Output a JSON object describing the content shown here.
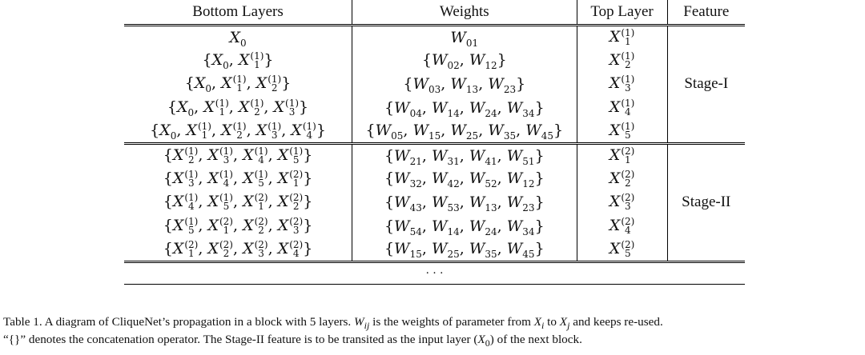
{
  "table": {
    "headers": [
      "Bottom Layers",
      "Weights",
      "Top Layer",
      "Feature"
    ],
    "stages": [
      {
        "feature": "Stage-I",
        "rows": [
          {
            "bottom": [
              [
                "X",
                "0",
                ""
              ]
            ],
            "weights": [
              [
                "W",
                "01"
              ]
            ],
            "top": [
              "X",
              "1",
              "(1)"
            ]
          },
          {
            "bottom": [
              [
                "X",
                "0",
                ""
              ],
              [
                "X",
                "1",
                "(1)"
              ]
            ],
            "weights": [
              [
                "W",
                "02"
              ],
              [
                "W",
                "12"
              ]
            ],
            "top": [
              "X",
              "2",
              "(1)"
            ]
          },
          {
            "bottom": [
              [
                "X",
                "0",
                ""
              ],
              [
                "X",
                "1",
                "(1)"
              ],
              [
                "X",
                "2",
                "(1)"
              ]
            ],
            "weights": [
              [
                "W",
                "03"
              ],
              [
                "W",
                "13"
              ],
              [
                "W",
                "23"
              ]
            ],
            "top": [
              "X",
              "3",
              "(1)"
            ]
          },
          {
            "bottom": [
              [
                "X",
                "0",
                ""
              ],
              [
                "X",
                "1",
                "(1)"
              ],
              [
                "X",
                "2",
                "(1)"
              ],
              [
                "X",
                "3",
                "(1)"
              ]
            ],
            "weights": [
              [
                "W",
                "04"
              ],
              [
                "W",
                "14"
              ],
              [
                "W",
                "24"
              ],
              [
                "W",
                "34"
              ]
            ],
            "top": [
              "X",
              "4",
              "(1)"
            ]
          },
          {
            "bottom": [
              [
                "X",
                "0",
                ""
              ],
              [
                "X",
                "1",
                "(1)"
              ],
              [
                "X",
                "2",
                "(1)"
              ],
              [
                "X",
                "3",
                "(1)"
              ],
              [
                "X",
                "4",
                "(1)"
              ]
            ],
            "weights": [
              [
                "W",
                "05"
              ],
              [
                "W",
                "15"
              ],
              [
                "W",
                "25"
              ],
              [
                "W",
                "35"
              ],
              [
                "W",
                "45"
              ]
            ],
            "top": [
              "X",
              "5",
              "(1)"
            ]
          }
        ]
      },
      {
        "feature": "Stage-II",
        "rows": [
          {
            "bottom": [
              [
                "X",
                "2",
                "(1)"
              ],
              [
                "X",
                "3",
                "(1)"
              ],
              [
                "X",
                "4",
                "(1)"
              ],
              [
                "X",
                "5",
                "(1)"
              ]
            ],
            "weights": [
              [
                "W",
                "21"
              ],
              [
                "W",
                "31"
              ],
              [
                "W",
                "41"
              ],
              [
                "W",
                "51"
              ]
            ],
            "top": [
              "X",
              "1",
              "(2)"
            ]
          },
          {
            "bottom": [
              [
                "X",
                "3",
                "(1)"
              ],
              [
                "X",
                "4",
                "(1)"
              ],
              [
                "X",
                "5",
                "(1)"
              ],
              [
                "X",
                "1",
                "(2)"
              ]
            ],
            "weights": [
              [
                "W",
                "32"
              ],
              [
                "W",
                "42"
              ],
              [
                "W",
                "52"
              ],
              [
                "W",
                "12"
              ]
            ],
            "top": [
              "X",
              "2",
              "(2)"
            ]
          },
          {
            "bottom": [
              [
                "X",
                "4",
                "(1)"
              ],
              [
                "X",
                "5",
                "(1)"
              ],
              [
                "X",
                "1",
                "(2)"
              ],
              [
                "X",
                "2",
                "(2)"
              ]
            ],
            "weights": [
              [
                "W",
                "43"
              ],
              [
                "W",
                "53"
              ],
              [
                "W",
                "13"
              ],
              [
                "W",
                "23"
              ]
            ],
            "top": [
              "X",
              "3",
              "(2)"
            ]
          },
          {
            "bottom": [
              [
                "X",
                "5",
                "(1)"
              ],
              [
                "X",
                "1",
                "(2)"
              ],
              [
                "X",
                "2",
                "(2)"
              ],
              [
                "X",
                "3",
                "(2)"
              ]
            ],
            "weights": [
              [
                "W",
                "54"
              ],
              [
                "W",
                "14"
              ],
              [
                "W",
                "24"
              ],
              [
                "W",
                "34"
              ]
            ],
            "top": [
              "X",
              "4",
              "(2)"
            ]
          },
          {
            "bottom": [
              [
                "X",
                "1",
                "(2)"
              ],
              [
                "X",
                "2",
                "(2)"
              ],
              [
                "X",
                "3",
                "(2)"
              ],
              [
                "X",
                "4",
                "(2)"
              ]
            ],
            "weights": [
              [
                "W",
                "15"
              ],
              [
                "W",
                "25"
              ],
              [
                "W",
                "35"
              ],
              [
                "W",
                "45"
              ]
            ],
            "top": [
              "X",
              "5",
              "(2)"
            ]
          }
        ]
      }
    ],
    "continuation": "· · ·"
  },
  "caption": {
    "line1": "Table 1. A diagram of CliqueNet’s propagation in a block with 5 layers. W_ij is the weights of parameter from X_i to X_j and keeps re-used.",
    "line2": "“{}” denotes the concatenation operator. The Stage-II feature is to be transited as the input layer (X_0) of the next block."
  }
}
